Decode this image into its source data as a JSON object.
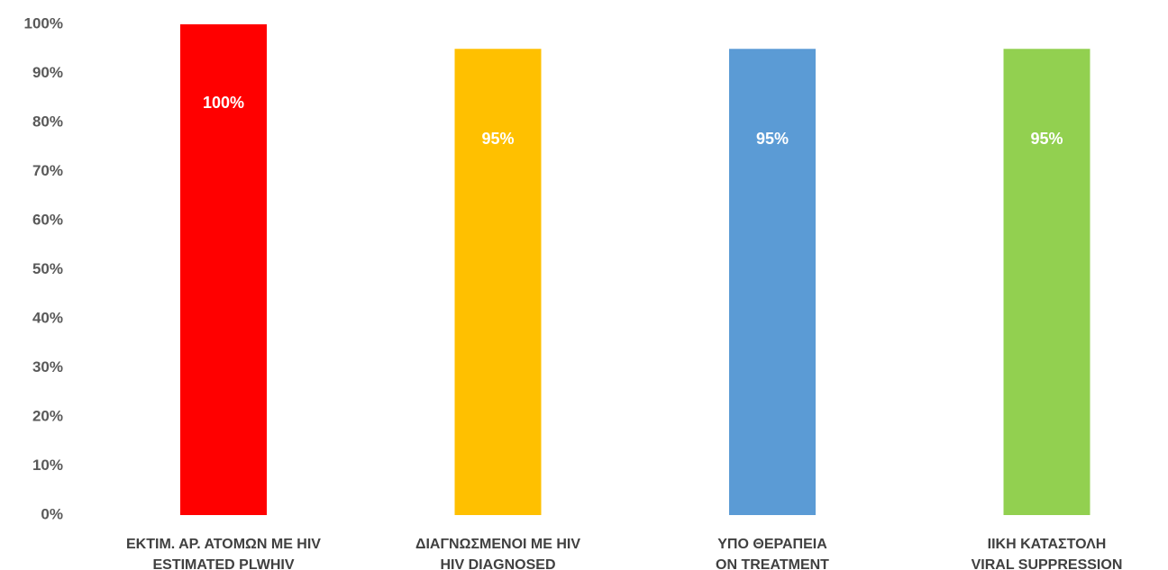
{
  "chart_data": {
    "type": "bar",
    "categories": [
      [
        "ΕΚΤΙΜ. ΑΡ. ΑΤΟΜΩΝ ΜΕ HIV",
        "ESTIMATED PLWHIV"
      ],
      [
        "ΔΙΑΓΝΩΣΜΕΝΟΙ ΜΕ HIV",
        "HIV DIAGNOSED"
      ],
      [
        "ΥΠΟ ΘΕΡΑΠΕΙΑ",
        "ON TREATMENT"
      ],
      [
        "ΙΙΚΗ ΚΑΤΑΣΤΟΛΗ",
        "VIRAL SUPPRESSION"
      ]
    ],
    "values": [
      100,
      95,
      95,
      95
    ],
    "value_labels": [
      "100%",
      "95%",
      "95%",
      "95%"
    ],
    "colors": [
      "#ff0000",
      "#ffc000",
      "#5b9bd5",
      "#92d050"
    ],
    "ylim": [
      0,
      100
    ],
    "yticks": [
      {
        "value": 0,
        "label": "0%"
      },
      {
        "value": 10,
        "label": "10%"
      },
      {
        "value": 20,
        "label": "20%"
      },
      {
        "value": 30,
        "label": "30%"
      },
      {
        "value": 40,
        "label": "40%"
      },
      {
        "value": 50,
        "label": "50%"
      },
      {
        "value": 60,
        "label": "60%"
      },
      {
        "value": 70,
        "label": "70%"
      },
      {
        "value": 80,
        "label": "80%"
      },
      {
        "value": 90,
        "label": "90%"
      },
      {
        "value": 100,
        "label": "100%"
      }
    ],
    "grid": false
  }
}
